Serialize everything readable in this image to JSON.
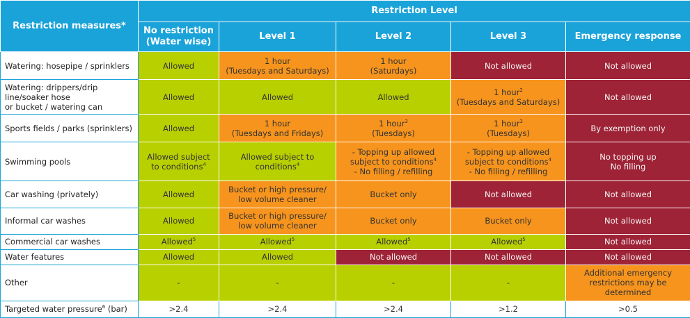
{
  "header": {
    "measures_label": "Restriction measures*",
    "level_group": "Restriction Level",
    "levels": [
      {
        "id": "no",
        "lines": [
          "No restriction",
          "(Water wise)"
        ]
      },
      {
        "id": "l1",
        "lines": [
          "Level 1"
        ]
      },
      {
        "id": "l2",
        "lines": [
          "Level 2"
        ]
      },
      {
        "id": "l3",
        "lines": [
          "Level 3"
        ]
      },
      {
        "id": "em",
        "lines": [
          "Emergency response"
        ]
      }
    ]
  },
  "colors": {
    "header": "#1aa3d9",
    "allowed": "#b8cf00",
    "limited": "#f7941d",
    "not_allowed": "#9e2336"
  },
  "rows": [
    {
      "measure": [
        "Watering: hosepipe / sprinklers"
      ],
      "h": 40,
      "cells": [
        {
          "c": "green",
          "lines": [
            [
              {
                "t": "Allowed"
              }
            ]
          ]
        },
        {
          "c": "orange",
          "lines": [
            [
              {
                "t": "1 hour"
              }
            ],
            [
              {
                "t": "(Tuesdays and Saturdays)"
              }
            ]
          ]
        },
        {
          "c": "orange",
          "lines": [
            [
              {
                "t": "1 hour"
              }
            ],
            [
              {
                "t": "(Saturdays)"
              }
            ]
          ]
        },
        {
          "c": "red",
          "lines": [
            [
              {
                "t": "Not allowed"
              }
            ]
          ]
        },
        {
          "c": "red",
          "lines": [
            [
              {
                "t": "Not allowed"
              }
            ]
          ]
        }
      ]
    },
    {
      "measure": [
        "Watering: drippers/drip",
        "line/soaker hose",
        "or bucket / watering can"
      ],
      "h": 50,
      "cells": [
        {
          "c": "green",
          "lines": [
            [
              {
                "t": "Allowed"
              }
            ]
          ]
        },
        {
          "c": "green",
          "lines": [
            [
              {
                "t": "Allowed"
              }
            ]
          ]
        },
        {
          "c": "green",
          "lines": [
            [
              {
                "t": "Allowed"
              }
            ]
          ]
        },
        {
          "c": "orange",
          "lines": [
            [
              {
                "t": "1 hour"
              },
              {
                "s": "2"
              }
            ],
            [
              {
                "t": "(Tuesdays and Saturdays)"
              }
            ]
          ]
        },
        {
          "c": "red",
          "lines": [
            [
              {
                "t": "Not allowed"
              }
            ]
          ]
        }
      ]
    },
    {
      "measure": [
        "Sports fields / parks (sprinklers)"
      ],
      "h": 40,
      "cells": [
        {
          "c": "green",
          "lines": [
            [
              {
                "t": "Allowed"
              }
            ]
          ]
        },
        {
          "c": "orange",
          "lines": [
            [
              {
                "t": "1 hour"
              }
            ],
            [
              {
                "t": "(Tuesdays and Fridays)"
              }
            ]
          ]
        },
        {
          "c": "orange",
          "lines": [
            [
              {
                "t": "1 hour"
              },
              {
                "s": "3"
              }
            ],
            [
              {
                "t": "(Tuesdays)"
              }
            ]
          ]
        },
        {
          "c": "orange",
          "lines": [
            [
              {
                "t": "1 hour"
              },
              {
                "s": "3"
              }
            ],
            [
              {
                "t": "(Tuesdays)"
              }
            ]
          ]
        },
        {
          "c": "red",
          "lines": [
            [
              {
                "t": "By exemption only"
              }
            ]
          ]
        }
      ]
    },
    {
      "measure": [
        "Swimming pools"
      ],
      "h": 56,
      "cells": [
        {
          "c": "green",
          "lines": [
            [
              {
                "t": "Allowed subject"
              }
            ],
            [
              {
                "t": "to conditions"
              },
              {
                "s": "4"
              }
            ]
          ]
        },
        {
          "c": "green",
          "lines": [
            [
              {
                "t": "Allowed subject to"
              }
            ],
            [
              {
                "t": "conditions"
              },
              {
                "s": "4"
              }
            ]
          ]
        },
        {
          "c": "orange",
          "lines": [
            [
              {
                "t": "- Topping up allowed"
              }
            ],
            [
              {
                "t": "subject to conditions"
              },
              {
                "s": "4"
              }
            ],
            [
              {
                "t": "- No filling / refilling"
              }
            ]
          ]
        },
        {
          "c": "orange",
          "lines": [
            [
              {
                "t": "- Topping up allowed"
              }
            ],
            [
              {
                "t": "subject to conditions"
              },
              {
                "s": "4"
              }
            ],
            [
              {
                "t": "- No filling / refilling"
              }
            ]
          ]
        },
        {
          "c": "red",
          "lines": [
            [
              {
                "t": "No topping up"
              }
            ],
            [
              {
                "t": "No filling"
              }
            ]
          ]
        }
      ]
    },
    {
      "measure": [
        "Car washing (privately)"
      ],
      "h": 38,
      "cells": [
        {
          "c": "green",
          "lines": [
            [
              {
                "t": "Allowed"
              }
            ]
          ]
        },
        {
          "c": "orange",
          "lines": [
            [
              {
                "t": "Bucket or high pressure/"
              }
            ],
            [
              {
                "t": "low volume cleaner"
              }
            ]
          ]
        },
        {
          "c": "orange",
          "lines": [
            [
              {
                "t": "Bucket only"
              }
            ]
          ]
        },
        {
          "c": "red",
          "lines": [
            [
              {
                "t": "Not allowed"
              }
            ]
          ]
        },
        {
          "c": "red",
          "lines": [
            [
              {
                "t": "Not allowed"
              }
            ]
          ]
        }
      ]
    },
    {
      "measure": [
        "Informal car washes"
      ],
      "h": 38,
      "cells": [
        {
          "c": "green",
          "lines": [
            [
              {
                "t": "Allowed"
              }
            ]
          ]
        },
        {
          "c": "orange",
          "lines": [
            [
              {
                "t": "Bucket or high pressure/"
              }
            ],
            [
              {
                "t": "low volume cleaner"
              }
            ]
          ]
        },
        {
          "c": "orange",
          "lines": [
            [
              {
                "t": "Bucket only"
              }
            ]
          ]
        },
        {
          "c": "orange",
          "lines": [
            [
              {
                "t": "Bucket only"
              }
            ]
          ]
        },
        {
          "c": "red",
          "lines": [
            [
              {
                "t": "Not allowed"
              }
            ]
          ]
        }
      ]
    },
    {
      "measure": [
        "Commercial car washes"
      ],
      "h": 22,
      "cells": [
        {
          "c": "green",
          "lines": [
            [
              {
                "t": "Allowed"
              },
              {
                "s": "5"
              }
            ]
          ]
        },
        {
          "c": "green",
          "lines": [
            [
              {
                "t": "Allowed"
              },
              {
                "s": "5"
              }
            ]
          ]
        },
        {
          "c": "green",
          "lines": [
            [
              {
                "t": "Allowed"
              },
              {
                "s": "5"
              }
            ]
          ]
        },
        {
          "c": "green",
          "lines": [
            [
              {
                "t": "Allowed"
              },
              {
                "s": "5"
              }
            ]
          ]
        },
        {
          "c": "red",
          "lines": [
            [
              {
                "t": "Not allowed"
              }
            ]
          ]
        }
      ]
    },
    {
      "measure": [
        "Water features"
      ],
      "h": 22,
      "cells": [
        {
          "c": "green",
          "lines": [
            [
              {
                "t": "Allowed"
              }
            ]
          ]
        },
        {
          "c": "green",
          "lines": [
            [
              {
                "t": "Allowed"
              }
            ]
          ]
        },
        {
          "c": "red",
          "lines": [
            [
              {
                "t": "Not allowed"
              }
            ]
          ]
        },
        {
          "c": "red",
          "lines": [
            [
              {
                "t": "Not allowed"
              }
            ]
          ]
        },
        {
          "c": "red",
          "lines": [
            [
              {
                "t": "Not allowed"
              }
            ]
          ]
        }
      ]
    },
    {
      "measure": [
        "Other"
      ],
      "h": 52,
      "cells": [
        {
          "c": "green",
          "lines": [
            [
              {
                "t": "-"
              }
            ]
          ]
        },
        {
          "c": "green",
          "lines": [
            [
              {
                "t": "-"
              }
            ]
          ]
        },
        {
          "c": "green",
          "lines": [
            [
              {
                "t": "-"
              }
            ]
          ]
        },
        {
          "c": "green",
          "lines": [
            [
              {
                "t": "-"
              }
            ]
          ]
        },
        {
          "c": "orange",
          "lines": [
            [
              {
                "t": "Additional emergency"
              }
            ],
            [
              {
                "t": "restrictions may be"
              }
            ],
            [
              {
                "t": "determined"
              }
            ]
          ]
        }
      ]
    },
    {
      "measure": [
        [
          {
            "t": "Targeted water pressure"
          },
          {
            "s": "6"
          },
          {
            "t": " (bar)"
          }
        ]
      ],
      "h": 24,
      "cells": [
        {
          "c": "white",
          "lines": [
            [
              {
                "t": ">2.4"
              }
            ]
          ]
        },
        {
          "c": "white",
          "lines": [
            [
              {
                "t": ">2.4"
              }
            ]
          ]
        },
        {
          "c": "white",
          "lines": [
            [
              {
                "t": ">2.4"
              }
            ]
          ]
        },
        {
          "c": "white",
          "lines": [
            [
              {
                "t": ">1.2"
              }
            ]
          ]
        },
        {
          "c": "white",
          "lines": [
            [
              {
                "t": ">0.5"
              }
            ]
          ]
        }
      ]
    }
  ]
}
